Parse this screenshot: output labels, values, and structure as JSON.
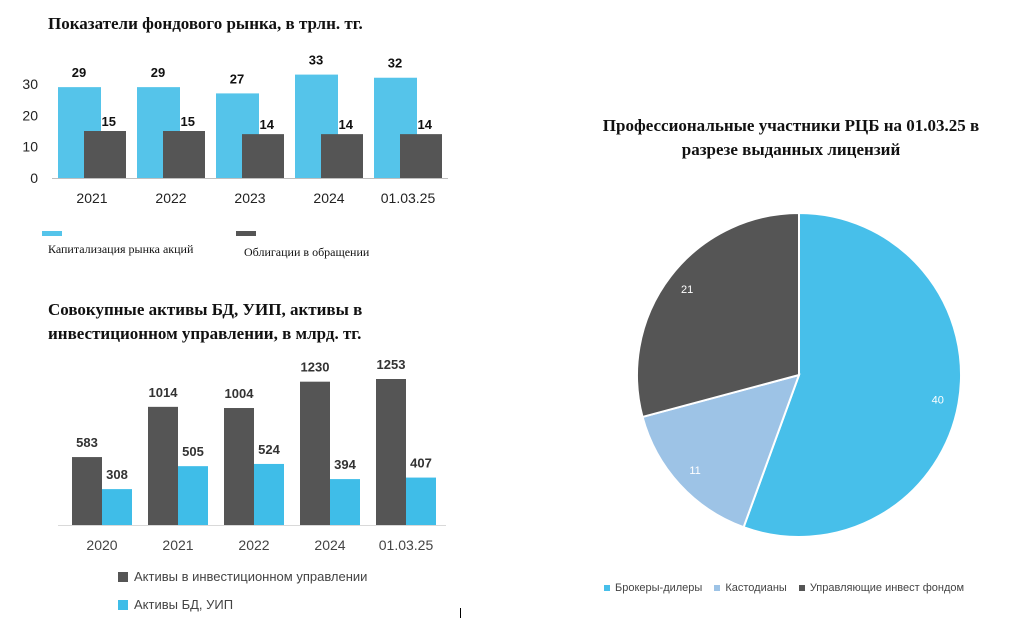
{
  "chart_data": [
    {
      "type": "bar",
      "title": "Показатели фондового рынка, в трлн. тг.",
      "categories": [
        "2021",
        "2022",
        "2023",
        "2024",
        "01.03.25"
      ],
      "series": [
        {
          "name": "Капитализация рынка акций",
          "values": [
            29,
            29,
            27,
            33,
            32
          ],
          "color": "#55c4ea"
        },
        {
          "name": "Облигации в обращении",
          "values": [
            15,
            15,
            14,
            14,
            14
          ],
          "color": "#555555"
        }
      ],
      "yticks": [
        0,
        10,
        20,
        30
      ],
      "ylim": [
        0,
        35
      ],
      "grid": false,
      "legend": "bottom"
    },
    {
      "type": "bar",
      "title": "Совокупные активы БД, УИП, активы в инвестиционном управлении, в млрд. тг.",
      "categories": [
        "2020",
        "2021",
        "2022",
        "2024",
        "01.03.25"
      ],
      "series": [
        {
          "name": "Активы в инвестиционном управлении",
          "values": [
            583,
            1014,
            1004,
            1230,
            1253
          ],
          "color": "#555555"
        },
        {
          "name": "Активы БД, УИП",
          "values": [
            308,
            505,
            524,
            394,
            407
          ],
          "color": "#3fbde8"
        }
      ],
      "ylim": [
        0,
        1300
      ],
      "grid": false,
      "legend": "bottom"
    },
    {
      "type": "pie",
      "title": "Профессиональные участники РЦБ на 01.03.25 в разрезе выданных лицензий",
      "categories": [
        "Брокеры-дилеры",
        "Кастодианы",
        "Управляющие инвест фондом"
      ],
      "values": [
        40,
        11,
        21
      ],
      "colors": [
        "#47bfea",
        "#9dc3e6",
        "#555555"
      ],
      "legend": "bottom"
    }
  ]
}
